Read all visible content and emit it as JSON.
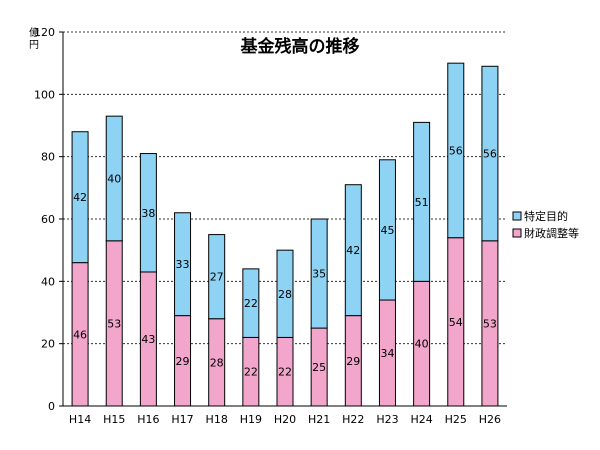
{
  "chart_data": {
    "type": "bar",
    "stacked": true,
    "title": "基金残高の推移",
    "ylabel": "億円",
    "xlabel": "",
    "categories": [
      "H14",
      "H15",
      "H16",
      "H17",
      "H18",
      "H19",
      "H20",
      "H21",
      "H22",
      "H23",
      "H24",
      "H25",
      "H26"
    ],
    "series": [
      {
        "name": "財政調整等",
        "color": "#f3a6cb",
        "values": [
          46,
          53,
          43,
          29,
          28,
          22,
          22,
          25,
          29,
          34,
          40,
          54,
          53
        ]
      },
      {
        "name": "特定目的",
        "color": "#8fd3f4",
        "values": [
          42,
          40,
          38,
          33,
          27,
          22,
          28,
          35,
          42,
          45,
          51,
          56,
          56
        ]
      }
    ],
    "ylim": [
      0,
      120
    ],
    "yticks": [
      0,
      20,
      40,
      60,
      80,
      100,
      120
    ],
    "grid": true,
    "legend_position": "right",
    "legend_order": [
      "特定目的",
      "財政調整等"
    ]
  }
}
